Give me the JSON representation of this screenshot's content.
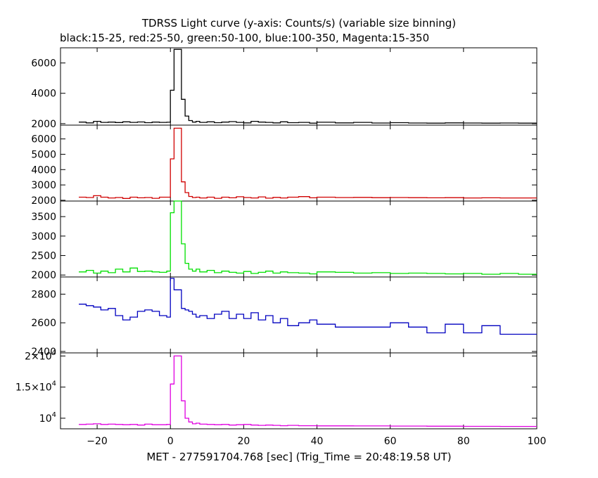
{
  "chart_data": {
    "type": "line",
    "title": "TDRSS Light curve (y-axis: Counts/s) (variable size binning)",
    "subtitle": "black:15-25, red:25-50, green:50-100, blue:100-350, Magenta:15-350",
    "xlabel": "MET - 277591704.768 [sec] (Trig_Time = 20:48:19.58 UT)",
    "xlim": [
      -30,
      100
    ],
    "xticks": [
      -20,
      0,
      20,
      40,
      60,
      80,
      100
    ],
    "step": "post",
    "x": [
      -25,
      -23,
      -21,
      -19,
      -17,
      -15,
      -13,
      -11,
      -9,
      -7,
      -5,
      -3,
      -1,
      0,
      1,
      2,
      3,
      4,
      5,
      6,
      7,
      8,
      10,
      12,
      14,
      16,
      18,
      20,
      22,
      24,
      26,
      28,
      30,
      32,
      35,
      38,
      40,
      45,
      50,
      55,
      60,
      65,
      70,
      75,
      80,
      85,
      90,
      95
    ],
    "series": [
      {
        "color": "#000000",
        "ylim": [
          1900,
          7000
        ],
        "yticks": [
          2000,
          4000,
          6000
        ],
        "tick_labels": [
          "2000",
          "4000",
          "6000"
        ],
        "values": [
          2100,
          2050,
          2150,
          2080,
          2100,
          2070,
          2120,
          2080,
          2110,
          2060,
          2100,
          2080,
          2090,
          4200,
          6900,
          6900,
          3600,
          2500,
          2200,
          2100,
          2150,
          2080,
          2120,
          2060,
          2100,
          2130,
          2080,
          2050,
          2150,
          2100,
          2080,
          2050,
          2120,
          2060,
          2080,
          2030,
          2090,
          2050,
          2080,
          2040,
          2060,
          2040,
          2030,
          2050,
          2040,
          2030,
          2040,
          2030
        ]
      },
      {
        "color": "#d00000",
        "ylim": [
          1950,
          6900
        ],
        "yticks": [
          2000,
          3000,
          4000,
          5000,
          6000
        ],
        "tick_labels": [
          "2000",
          "3000",
          "4000",
          "5000",
          "6000"
        ],
        "values": [
          2200,
          2180,
          2300,
          2200,
          2150,
          2180,
          2120,
          2200,
          2160,
          2180,
          2130,
          2200,
          2200,
          4700,
          6700,
          6700,
          3200,
          2500,
          2250,
          2180,
          2200,
          2150,
          2200,
          2130,
          2200,
          2160,
          2230,
          2180,
          2150,
          2220,
          2140,
          2190,
          2150,
          2200,
          2240,
          2160,
          2200,
          2180,
          2190,
          2170,
          2180,
          2170,
          2160,
          2170,
          2150,
          2160,
          2150,
          2150
        ]
      },
      {
        "color": "#00e000",
        "ylim": [
          1950,
          3900
        ],
        "yticks": [
          2000,
          2500,
          3000,
          3500
        ],
        "tick_labels": [
          "2000",
          "2500",
          "3000",
          "3500"
        ],
        "values": [
          2080,
          2120,
          2050,
          2100,
          2060,
          2150,
          2080,
          2180,
          2090,
          2100,
          2080,
          2070,
          2100,
          3600,
          3900,
          3900,
          2800,
          2300,
          2150,
          2100,
          2150,
          2080,
          2120,
          2060,
          2100,
          2070,
          2050,
          2090,
          2040,
          2070,
          2100,
          2050,
          2080,
          2060,
          2050,
          2030,
          2080,
          2070,
          2050,
          2060,
          2040,
          2050,
          2040,
          2030,
          2040,
          2020,
          2040,
          2020
        ]
      },
      {
        "color": "#0000c0",
        "ylim": [
          2390,
          2920
        ],
        "yticks": [
          2400,
          2600,
          2800
        ],
        "tick_labels": [
          "2400",
          "2600",
          "2800"
        ],
        "values": [
          2730,
          2720,
          2710,
          2690,
          2700,
          2650,
          2620,
          2640,
          2680,
          2690,
          2680,
          2650,
          2640,
          2910,
          2830,
          2830,
          2700,
          2690,
          2680,
          2660,
          2640,
          2650,
          2630,
          2660,
          2680,
          2630,
          2660,
          2630,
          2670,
          2620,
          2650,
          2600,
          2630,
          2580,
          2600,
          2620,
          2590,
          2570,
          2570,
          2570,
          2600,
          2570,
          2530,
          2590,
          2530,
          2580,
          2520,
          2520
        ]
      },
      {
        "color": "#e000e0",
        "ylim": [
          8300,
          20500
        ],
        "yticks": [
          10000,
          15000,
          20000
        ],
        "tick_labels": [
          "10",
          "1.5×10",
          "2×10"
        ],
        "tick_exps": [
          "4",
          "4",
          "4"
        ],
        "values": [
          9000,
          9050,
          9100,
          9000,
          9050,
          9000,
          8950,
          9000,
          8900,
          9050,
          8950,
          8950,
          9000,
          15500,
          20000,
          20000,
          12800,
          10000,
          9400,
          9100,
          9200,
          9050,
          9000,
          8950,
          9000,
          8900,
          8950,
          9000,
          8900,
          8850,
          8900,
          8850,
          8800,
          8850,
          8800,
          8800,
          8780,
          8780,
          8760,
          8760,
          8740,
          8740,
          8720,
          8720,
          8700,
          8700,
          8680,
          8680
        ]
      }
    ]
  }
}
